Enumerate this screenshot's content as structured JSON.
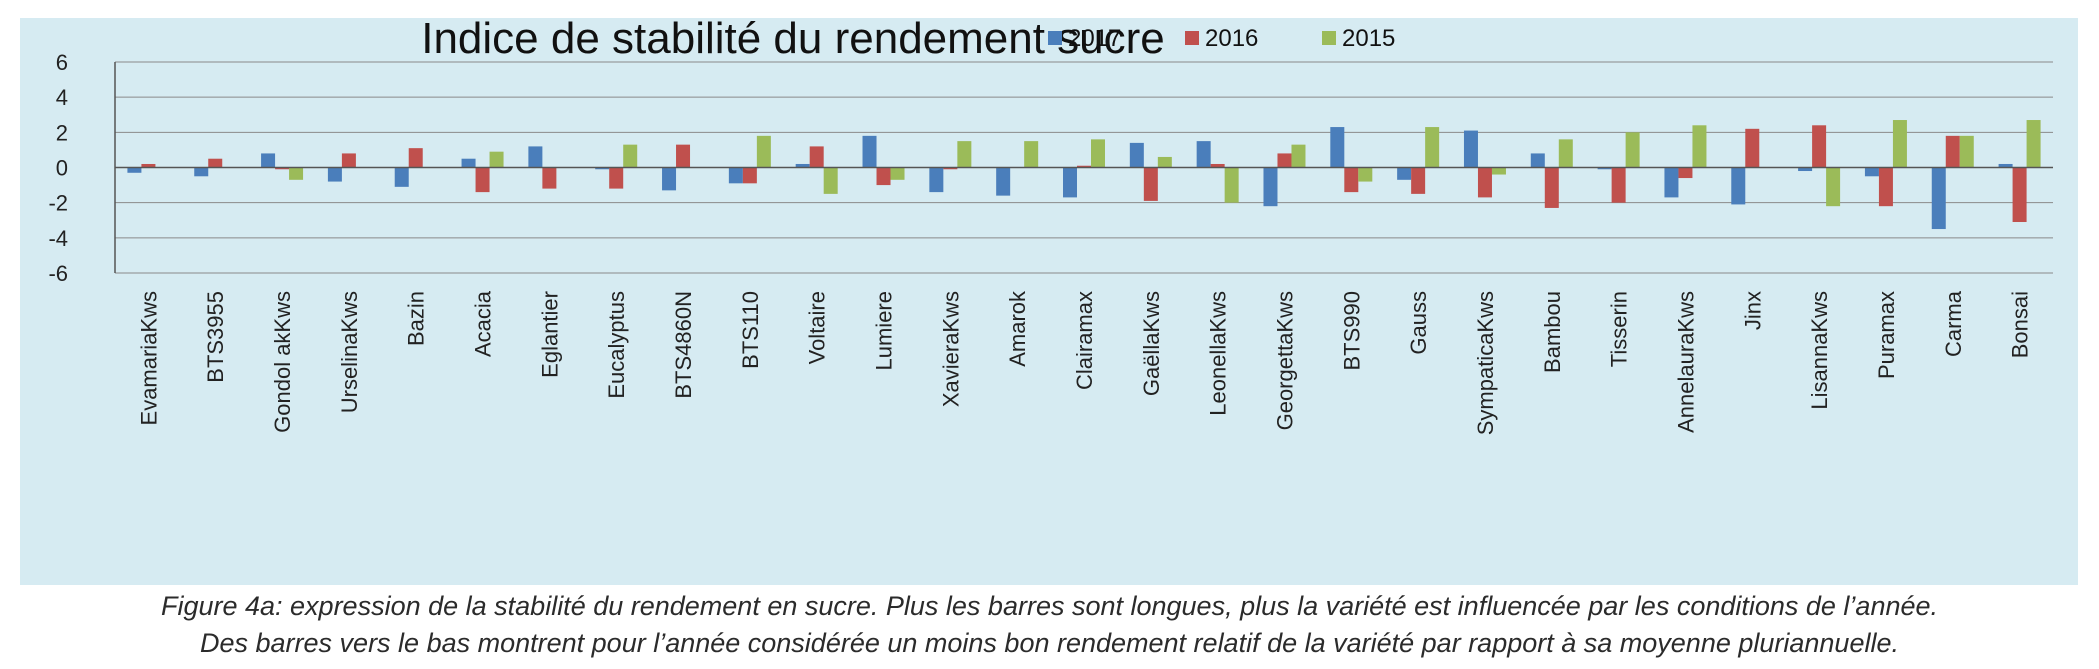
{
  "chart_data": {
    "type": "bar",
    "title": "Indice de stabilité du rendement sucre",
    "xlabel": "",
    "ylabel": "",
    "ylim": [
      -6,
      6
    ],
    "yticks": [
      6,
      4,
      2,
      0,
      -2,
      -4,
      -6
    ],
    "grid": true,
    "legend_position": "top-right",
    "categories": [
      "EvamariaKws",
      "BTS3955",
      "Gondol akKws",
      "UrselinaKws",
      "Bazin",
      "Acacia",
      "Eglantier",
      "Eucalyptus",
      "BTS4860N",
      "BTS110",
      "Voltaire",
      "Lumiere",
      "XavieraKws",
      "Amarok",
      "Clairamax",
      "GaëllaKws",
      "LeonellaKws",
      "GeorgettaKws",
      "BTS990",
      "Gauss",
      "SympaticaKws",
      "Bambou",
      "Tisserin",
      "AnnelauraKws",
      "Jinx",
      "LisannaKws",
      "Puramax",
      "Carma",
      "Bonsai"
    ],
    "series": [
      {
        "name": "2017",
        "color": "#4a7ebb",
        "values": [
          -0.3,
          -0.5,
          0.8,
          -0.8,
          -1.1,
          0.5,
          1.2,
          -0.1,
          -1.3,
          -0.9,
          0.2,
          1.8,
          -1.4,
          -1.6,
          -1.7,
          1.4,
          1.5,
          -2.2,
          2.3,
          -0.7,
          2.1,
          0.8,
          -0.1,
          -1.7,
          -2.1,
          -0.2,
          -0.5,
          -3.5,
          0.2
        ]
      },
      {
        "name": "2016",
        "color": "#c0504d",
        "values": [
          0.2,
          0.5,
          -0.1,
          0.8,
          1.1,
          -1.4,
          -1.2,
          -1.2,
          1.3,
          -0.9,
          1.2,
          -1.0,
          -0.1,
          0.0,
          0.1,
          -1.9,
          0.2,
          0.8,
          -1.4,
          -1.5,
          -1.7,
          -2.3,
          -2.0,
          -0.6,
          2.2,
          2.4,
          -2.2,
          1.8,
          -3.1
        ]
      },
      {
        "name": "2015",
        "color": "#9bbb59",
        "values": [
          0.0,
          0.0,
          -0.7,
          0.0,
          0.0,
          0.9,
          0.0,
          1.3,
          0.0,
          1.8,
          -1.5,
          -0.7,
          1.5,
          1.5,
          1.6,
          0.6,
          -2.0,
          1.3,
          -0.8,
          2.3,
          -0.4,
          1.6,
          2.0,
          2.4,
          0.0,
          -2.2,
          2.7,
          1.8,
          2.7
        ]
      }
    ]
  },
  "caption": {
    "line1": "Figure 4a: expression de la stabilité du rendement en sucre. Plus les barres sont longues, plus la variété est influencée par les conditions de l’année.",
    "line2": "Des barres vers le bas montrent pour l’année considérée un moins bon rendement relatif de la variété par rapport à sa moyenne pluriannuelle."
  }
}
